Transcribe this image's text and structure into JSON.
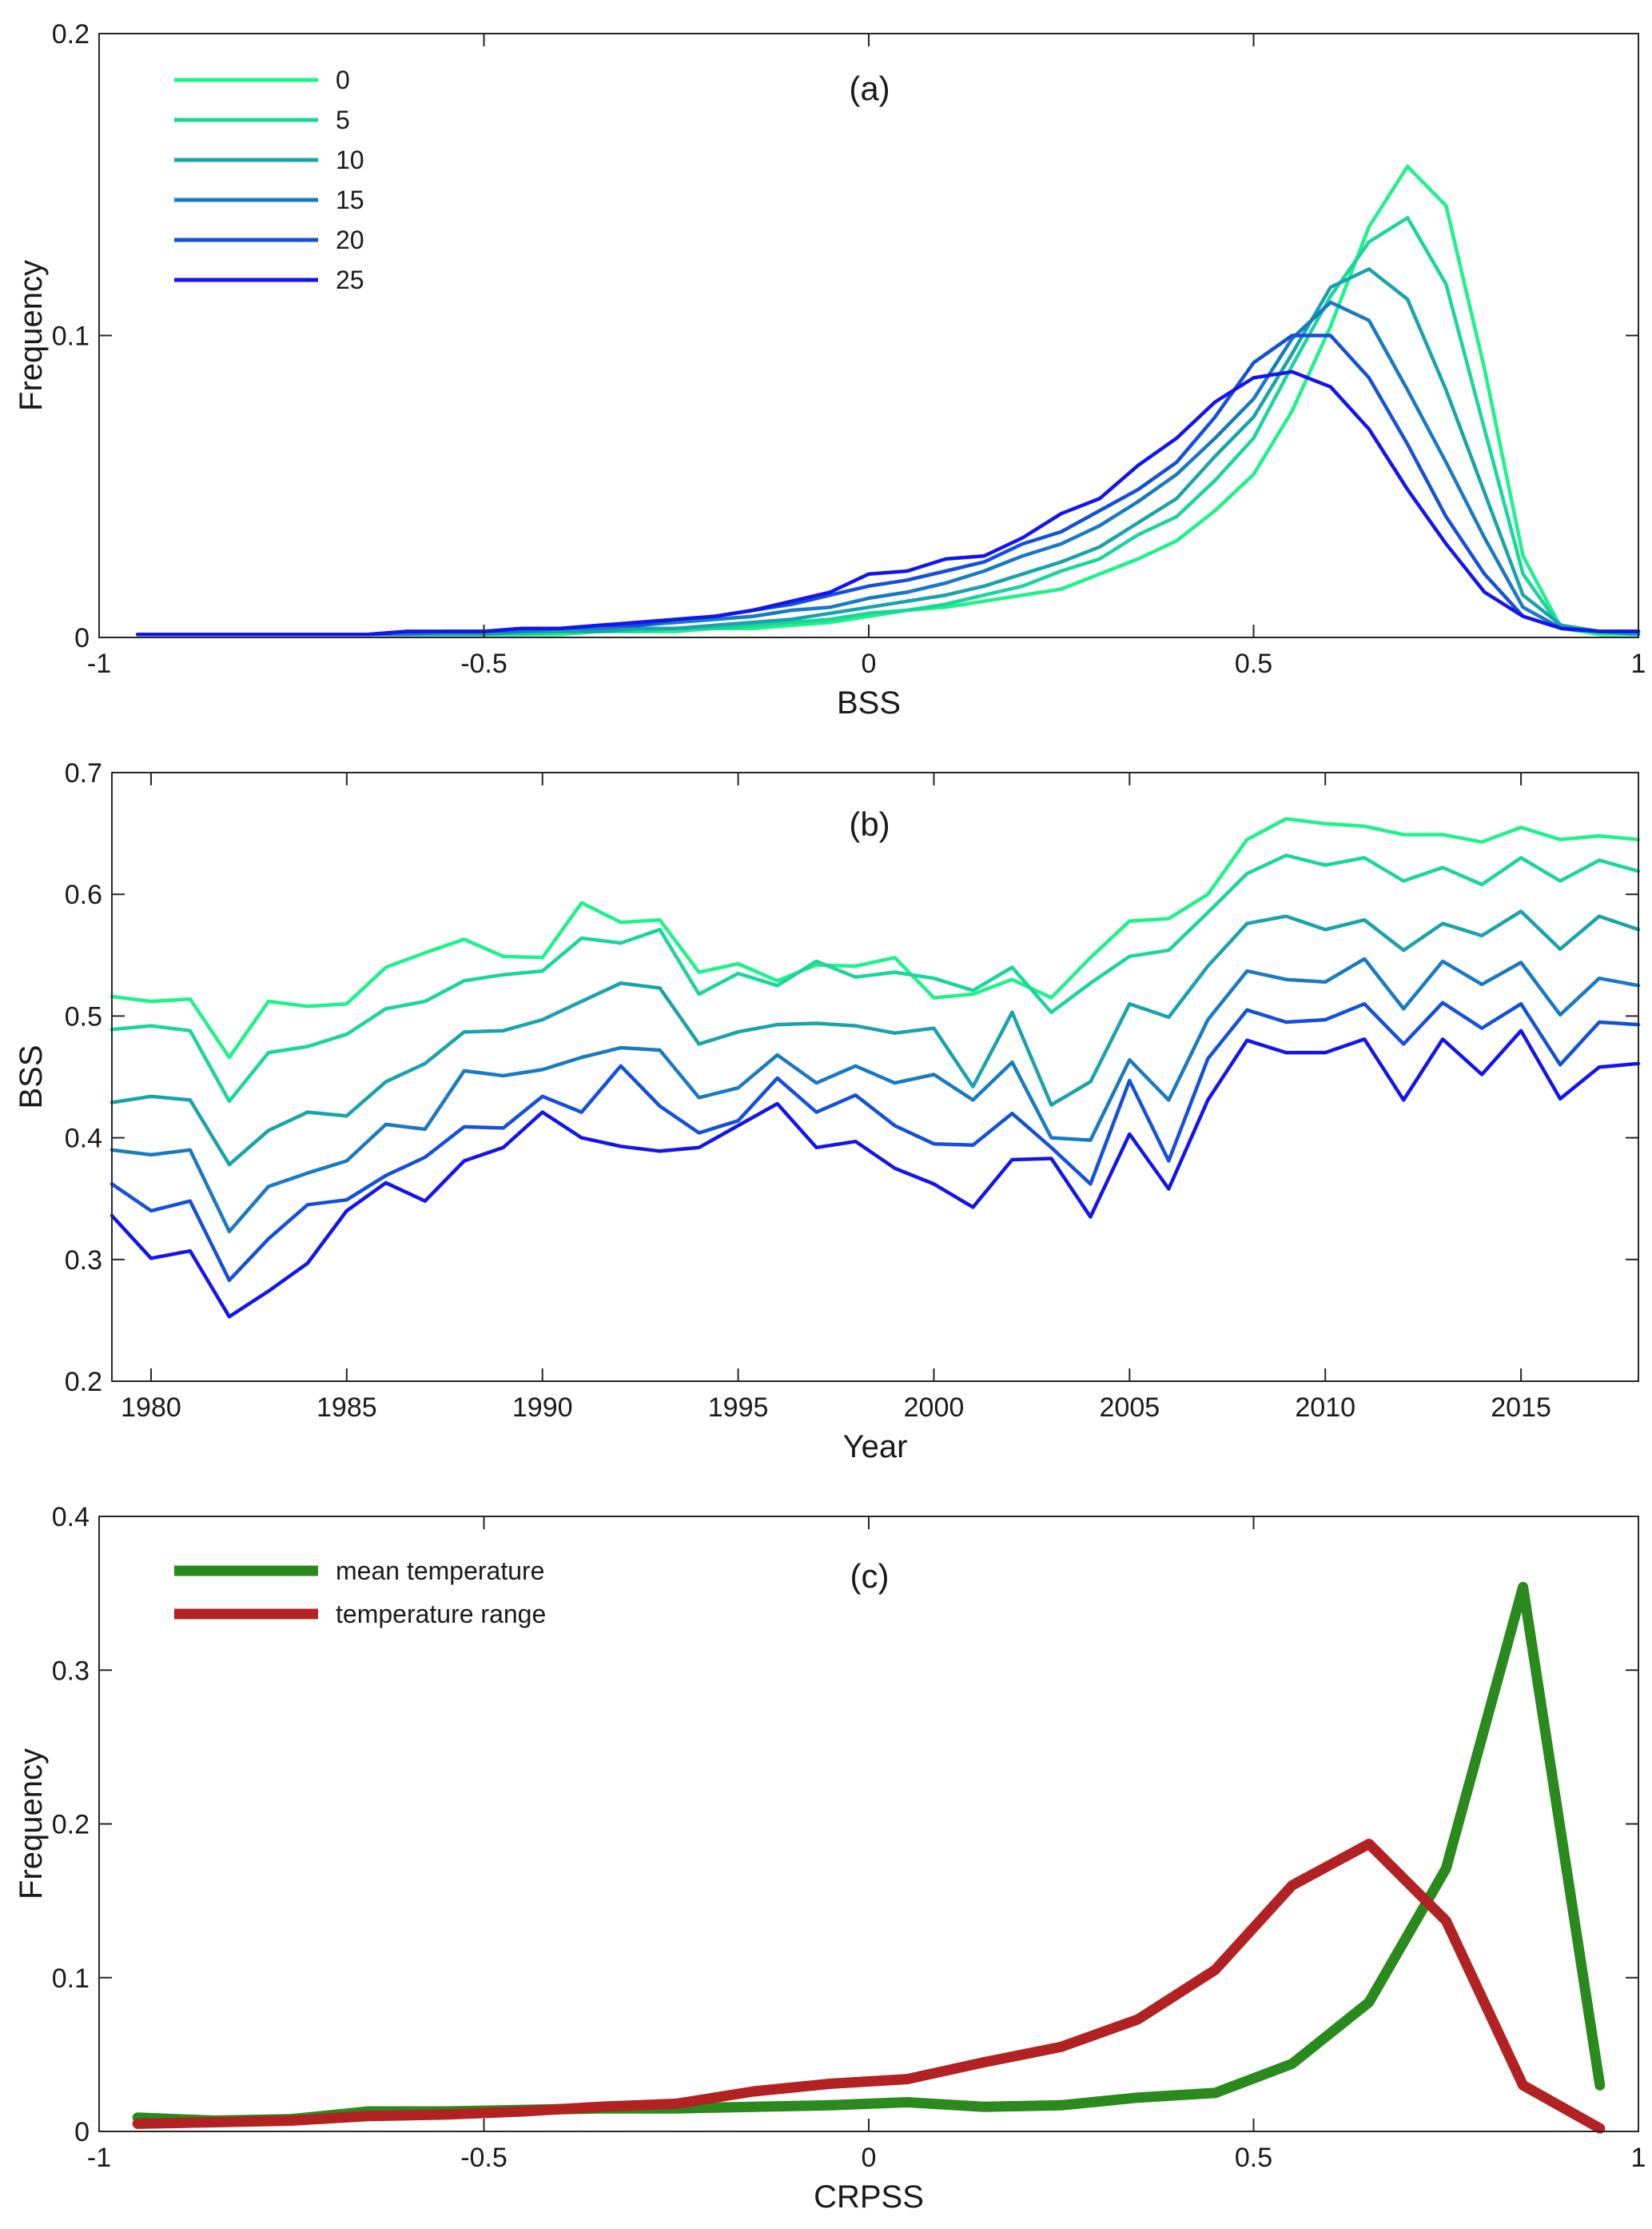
{
  "chart_data": [
    {
      "type": "line",
      "title": "(a)",
      "xlabel": "BSS",
      "ylabel": "Frequency",
      "xlim": [
        -1,
        1
      ],
      "ylim": [
        0,
        0.2
      ],
      "xticks": [
        -1,
        -0.5,
        0,
        0.5,
        1
      ],
      "xtick_labels": [
        "-1",
        "-0.5",
        "0",
        "0.5",
        "1"
      ],
      "yticks": [
        0,
        0.1,
        0.2
      ],
      "ytick_labels": [
        "0",
        "0.1",
        "0.2"
      ],
      "legend_position": "top-left",
      "x": [
        -0.95,
        -0.9,
        -0.85,
        -0.8,
        -0.75,
        -0.7,
        -0.65,
        -0.6,
        -0.55,
        -0.5,
        -0.45,
        -0.4,
        -0.35,
        -0.3,
        -0.25,
        -0.2,
        -0.15,
        -0.1,
        -0.05,
        0,
        0.05,
        0.1,
        0.15,
        0.2,
        0.25,
        0.3,
        0.35,
        0.4,
        0.45,
        0.5,
        0.55,
        0.6,
        0.65,
        0.7,
        0.75,
        0.8,
        0.85,
        0.9,
        0.95,
        1.0
      ],
      "series": [
        {
          "name": "0",
          "color": "#1ef28a",
          "values": [
            0.001,
            0.001,
            0.001,
            0.001,
            0.001,
            0.001,
            0.001,
            0.001,
            0.001,
            0.001,
            0.001,
            0.001,
            0.002,
            0.002,
            0.002,
            0.003,
            0.003,
            0.004,
            0.005,
            0.007,
            0.009,
            0.01,
            0.012,
            0.014,
            0.016,
            0.021,
            0.026,
            0.032,
            0.042,
            0.054,
            0.075,
            0.103,
            0.136,
            0.156,
            0.143,
            0.089,
            0.027,
            0.003,
            0.001,
            0.001
          ]
        },
        {
          "name": "5",
          "color": "#1ad69a",
          "values": [
            0.001,
            0.001,
            0.001,
            0.001,
            0.001,
            0.001,
            0.001,
            0.001,
            0.001,
            0.001,
            0.001,
            0.002,
            0.002,
            0.002,
            0.003,
            0.003,
            0.004,
            0.005,
            0.006,
            0.008,
            0.009,
            0.011,
            0.014,
            0.017,
            0.022,
            0.026,
            0.034,
            0.04,
            0.052,
            0.066,
            0.09,
            0.113,
            0.131,
            0.139,
            0.117,
            0.069,
            0.021,
            0.003,
            0.002,
            0.001
          ]
        },
        {
          "name": "10",
          "color": "#1aa3aa",
          "values": [
            0.001,
            0.001,
            0.001,
            0.001,
            0.001,
            0.001,
            0.001,
            0.001,
            0.001,
            0.001,
            0.002,
            0.002,
            0.002,
            0.003,
            0.003,
            0.004,
            0.005,
            0.006,
            0.008,
            0.01,
            0.012,
            0.014,
            0.017,
            0.021,
            0.025,
            0.03,
            0.038,
            0.046,
            0.06,
            0.073,
            0.094,
            0.116,
            0.122,
            0.112,
            0.082,
            0.048,
            0.014,
            0.004,
            0.002,
            0.001
          ]
        },
        {
          "name": "15",
          "color": "#1a7ac0",
          "values": [
            0.001,
            0.001,
            0.001,
            0.001,
            0.001,
            0.001,
            0.001,
            0.001,
            0.002,
            0.002,
            0.002,
            0.003,
            0.003,
            0.004,
            0.005,
            0.006,
            0.007,
            0.009,
            0.01,
            0.013,
            0.015,
            0.018,
            0.022,
            0.027,
            0.031,
            0.037,
            0.045,
            0.054,
            0.066,
            0.079,
            0.099,
            0.111,
            0.105,
            0.082,
            0.058,
            0.033,
            0.01,
            0.003,
            0.002,
            0.002
          ]
        },
        {
          "name": "20",
          "color": "#1650d8",
          "values": [
            0.001,
            0.001,
            0.001,
            0.001,
            0.001,
            0.001,
            0.001,
            0.002,
            0.002,
            0.002,
            0.003,
            0.003,
            0.004,
            0.004,
            0.006,
            0.007,
            0.009,
            0.011,
            0.014,
            0.017,
            0.019,
            0.022,
            0.025,
            0.031,
            0.035,
            0.042,
            0.049,
            0.058,
            0.073,
            0.091,
            0.1,
            0.1,
            0.086,
            0.064,
            0.04,
            0.021,
            0.007,
            0.003,
            0.002,
            0.002
          ]
        },
        {
          "name": "25",
          "color": "#1414ec",
          "values": [
            0.001,
            0.001,
            0.001,
            0.001,
            0.001,
            0.001,
            0.001,
            0.002,
            0.002,
            0.002,
            0.003,
            0.003,
            0.004,
            0.005,
            0.006,
            0.007,
            0.009,
            0.012,
            0.015,
            0.021,
            0.022,
            0.026,
            0.027,
            0.033,
            0.041,
            0.046,
            0.057,
            0.066,
            0.078,
            0.086,
            0.088,
            0.083,
            0.069,
            0.049,
            0.031,
            0.015,
            0.007,
            0.003,
            0.002,
            0.002
          ]
        }
      ]
    },
    {
      "type": "line",
      "title": "(b)",
      "xlabel": "Year",
      "ylabel": "BSS",
      "xlim": [
        1979,
        2018
      ],
      "ylim": [
        0.2,
        0.7
      ],
      "xticks": [
        1980,
        1985,
        1990,
        1995,
        2000,
        2005,
        2010,
        2015
      ],
      "xtick_labels": [
        "1980",
        "1985",
        "1990",
        "1995",
        "2000",
        "2005",
        "2010",
        "2015"
      ],
      "yticks": [
        0.2,
        0.3,
        0.4,
        0.5,
        0.6,
        0.7
      ],
      "ytick_labels": [
        "0.2",
        "0.3",
        "0.4",
        "0.5",
        "0.6",
        "0.7"
      ],
      "x": [
        1979,
        1980,
        1981,
        1982,
        1983,
        1984,
        1985,
        1986,
        1987,
        1988,
        1989,
        1990,
        1991,
        1992,
        1993,
        1994,
        1995,
        1996,
        1997,
        1998,
        1999,
        2000,
        2001,
        2002,
        2003,
        2004,
        2005,
        2006,
        2007,
        2008,
        2009,
        2010,
        2011,
        2012,
        2013,
        2014,
        2015,
        2016,
        2017,
        2018
      ],
      "series": [
        {
          "name": "0",
          "color": "#1ef28a",
          "values": [
            0.516,
            0.512,
            0.514,
            0.466,
            0.512,
            0.508,
            0.51,
            0.54,
            0.552,
            0.563,
            0.549,
            0.548,
            0.593,
            0.577,
            0.579,
            0.536,
            0.543,
            0.529,
            0.542,
            0.541,
            0.548,
            0.515,
            0.518,
            0.53,
            0.515,
            0.548,
            0.578,
            0.58,
            0.6,
            0.645,
            0.662,
            0.658,
            0.656,
            0.649,
            0.649,
            0.643,
            0.655,
            0.645,
            0.648,
            0.645
          ]
        },
        {
          "name": "5",
          "color": "#1ad69a",
          "values": [
            0.489,
            0.492,
            0.488,
            0.43,
            0.47,
            0.475,
            0.485,
            0.506,
            0.512,
            0.529,
            0.534,
            0.537,
            0.564,
            0.56,
            0.571,
            0.518,
            0.535,
            0.525,
            0.545,
            0.532,
            0.536,
            0.531,
            0.521,
            0.54,
            0.503,
            0.527,
            0.549,
            0.554,
            0.585,
            0.617,
            0.632,
            0.624,
            0.63,
            0.611,
            0.622,
            0.608,
            0.63,
            0.611,
            0.628,
            0.619
          ]
        },
        {
          "name": "10",
          "color": "#1aa3aa",
          "values": [
            0.429,
            0.434,
            0.431,
            0.378,
            0.406,
            0.421,
            0.418,
            0.446,
            0.461,
            0.487,
            0.488,
            0.497,
            0.512,
            0.527,
            0.523,
            0.477,
            0.487,
            0.493,
            0.494,
            0.492,
            0.486,
            0.49,
            0.442,
            0.503,
            0.427,
            0.446,
            0.51,
            0.499,
            0.541,
            0.576,
            0.582,
            0.571,
            0.579,
            0.554,
            0.576,
            0.566,
            0.586,
            0.555,
            0.582,
            0.571
          ]
        },
        {
          "name": "15",
          "color": "#1a7ac0",
          "values": [
            0.39,
            0.386,
            0.39,
            0.323,
            0.36,
            0.371,
            0.381,
            0.411,
            0.407,
            0.455,
            0.451,
            0.456,
            0.466,
            0.474,
            0.472,
            0.433,
            0.441,
            0.468,
            0.445,
            0.459,
            0.445,
            0.452,
            0.431,
            0.462,
            0.4,
            0.398,
            0.464,
            0.431,
            0.497,
            0.537,
            0.53,
            0.528,
            0.547,
            0.506,
            0.545,
            0.526,
            0.544,
            0.501,
            0.531,
            0.525
          ]
        },
        {
          "name": "20",
          "color": "#1650d8",
          "values": [
            0.362,
            0.34,
            0.348,
            0.283,
            0.317,
            0.345,
            0.349,
            0.369,
            0.384,
            0.409,
            0.408,
            0.434,
            0.421,
            0.459,
            0.426,
            0.404,
            0.414,
            0.449,
            0.421,
            0.435,
            0.41,
            0.395,
            0.394,
            0.42,
            0.392,
            0.362,
            0.447,
            0.381,
            0.465,
            0.505,
            0.495,
            0.497,
            0.51,
            0.477,
            0.511,
            0.49,
            0.51,
            0.46,
            0.495,
            0.493
          ]
        },
        {
          "name": "25",
          "color": "#1414ec",
          "values": [
            0.336,
            0.301,
            0.307,
            0.253,
            0.274,
            0.297,
            0.34,
            0.363,
            0.348,
            0.381,
            0.392,
            0.421,
            0.4,
            0.393,
            0.389,
            0.392,
            0.41,
            0.428,
            0.392,
            0.397,
            0.375,
            0.362,
            0.343,
            0.382,
            0.383,
            0.335,
            0.403,
            0.358,
            0.431,
            0.48,
            0.47,
            0.47,
            0.481,
            0.431,
            0.481,
            0.452,
            0.488,
            0.432,
            0.458,
            0.461
          ]
        }
      ]
    },
    {
      "type": "line",
      "title": "(c)",
      "xlabel": "CRPSS",
      "ylabel": "Frequency",
      "xlim": [
        -1,
        1
      ],
      "ylim": [
        0,
        0.4
      ],
      "xticks": [
        -1,
        -0.5,
        0,
        0.5,
        1
      ],
      "xtick_labels": [
        "-1",
        "-0.5",
        "0",
        "0.5",
        "1"
      ],
      "yticks": [
        0,
        0.1,
        0.2,
        0.3,
        0.4
      ],
      "ytick_labels": [
        "0",
        "0.1",
        "0.2",
        "0.3",
        "0.4"
      ],
      "legend_position": "top-left",
      "x": [
        -0.95,
        -0.85,
        -0.75,
        -0.65,
        -0.55,
        -0.45,
        -0.35,
        -0.25,
        -0.15,
        -0.05,
        0.05,
        0.15,
        0.25,
        0.35,
        0.45,
        0.55,
        0.65,
        0.75,
        0.85,
        0.95
      ],
      "series": [
        {
          "name": "mean temperature",
          "color": "#2a8a1e",
          "values": [
            0.009,
            0.007,
            0.008,
            0.013,
            0.013,
            0.014,
            0.015,
            0.015,
            0.016,
            0.017,
            0.019,
            0.016,
            0.017,
            0.022,
            0.025,
            0.044,
            0.084,
            0.171,
            0.354,
            0.03
          ]
        },
        {
          "name": "temperature range",
          "color": "#b22222",
          "values": [
            0.005,
            0.006,
            0.007,
            0.01,
            0.011,
            0.013,
            0.016,
            0.018,
            0.026,
            0.031,
            0.034,
            0.045,
            0.055,
            0.073,
            0.105,
            0.16,
            0.187,
            0.137,
            0.03,
            0.002
          ]
        }
      ]
    }
  ]
}
